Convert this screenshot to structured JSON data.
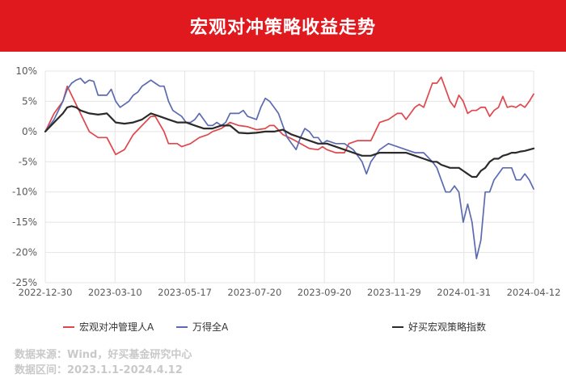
{
  "title": "宏观对冲策略收益走势",
  "chart_data": {
    "type": "line",
    "x_ticks": [
      "2022-12-30",
      "2023-03-10",
      "2023-05-17",
      "2023-07-20",
      "2023-09-20",
      "2023-11-29",
      "2024-01-31",
      "2024-04-12"
    ],
    "y_ticks": [
      "10%",
      "5%",
      "0%",
      "-5%",
      "-10%",
      "-15%",
      "-20%",
      "-25%"
    ],
    "ylim": [
      -25,
      10
    ],
    "grid": true,
    "legend_position": "bottom",
    "series": [
      {
        "name": "宏观对冲管理人A",
        "color": "#e0474c",
        "points": [
          [
            0,
            0
          ],
          [
            2,
            3
          ],
          [
            4,
            5
          ],
          [
            5,
            7.5
          ],
          [
            6,
            6
          ],
          [
            8,
            3
          ],
          [
            10,
            0
          ],
          [
            12,
            -1
          ],
          [
            14,
            -1
          ],
          [
            16,
            -3.8
          ],
          [
            18,
            -3
          ],
          [
            20,
            -0.5
          ],
          [
            22,
            1
          ],
          [
            24,
            2.5
          ],
          [
            25,
            2.5
          ],
          [
            27,
            0
          ],
          [
            28,
            -2
          ],
          [
            30,
            -2
          ],
          [
            31,
            -2.5
          ],
          [
            33,
            -2
          ],
          [
            35,
            -1
          ],
          [
            37,
            -0.5
          ],
          [
            38,
            0
          ],
          [
            40,
            0.5
          ],
          [
            41,
            1
          ],
          [
            42,
            1.5
          ],
          [
            44,
            1
          ],
          [
            46,
            0.8
          ],
          [
            48,
            0.3
          ],
          [
            50,
            0.5
          ],
          [
            51,
            1
          ],
          [
            52,
            1
          ],
          [
            54,
            -0.5
          ],
          [
            56,
            -1.2
          ],
          [
            58,
            -2
          ],
          [
            60,
            -2.8
          ],
          [
            62,
            -3
          ],
          [
            63,
            -2.5
          ],
          [
            64,
            -3
          ],
          [
            66,
            -3.5
          ],
          [
            68,
            -3.5
          ],
          [
            69,
            -2
          ],
          [
            71,
            -1.5
          ],
          [
            73,
            -1.5
          ],
          [
            74,
            -1.5
          ],
          [
            76,
            1.5
          ],
          [
            78,
            2
          ],
          [
            80,
            3
          ],
          [
            81,
            3
          ],
          [
            82,
            2
          ],
          [
            84,
            4
          ],
          [
            85,
            4.5
          ],
          [
            86,
            4
          ],
          [
            88,
            8
          ],
          [
            89,
            8
          ],
          [
            90,
            9
          ],
          [
            92,
            5
          ],
          [
            93,
            4
          ],
          [
            94,
            6
          ],
          [
            95,
            5
          ],
          [
            96,
            3
          ],
          [
            97,
            3.5
          ],
          [
            98,
            3.5
          ],
          [
            99,
            4
          ],
          [
            100,
            4
          ],
          [
            101,
            2.5
          ],
          [
            102,
            3.5
          ],
          [
            103,
            4
          ],
          [
            104,
            5.8
          ],
          [
            105,
            4
          ],
          [
            106,
            4.2
          ],
          [
            107,
            4
          ],
          [
            108,
            4.5
          ],
          [
            109,
            4
          ],
          [
            110,
            5
          ],
          [
            111,
            6.2
          ]
        ]
      },
      {
        "name": "万得全A",
        "color": "#5c6bb0",
        "points": [
          [
            0,
            0
          ],
          [
            2,
            2
          ],
          [
            4,
            5
          ],
          [
            5,
            7
          ],
          [
            6,
            8
          ],
          [
            7,
            8.5
          ],
          [
            8,
            8.8
          ],
          [
            9,
            8
          ],
          [
            10,
            8.5
          ],
          [
            11,
            8.3
          ],
          [
            12,
            6
          ],
          [
            14,
            6
          ],
          [
            15,
            7
          ],
          [
            16,
            5
          ],
          [
            17,
            4
          ],
          [
            18,
            4.5
          ],
          [
            19,
            5
          ],
          [
            20,
            6
          ],
          [
            21,
            6.5
          ],
          [
            22,
            7.5
          ],
          [
            23,
            8
          ],
          [
            24,
            8.5
          ],
          [
            25,
            8
          ],
          [
            26,
            7.5
          ],
          [
            27,
            7.5
          ],
          [
            28,
            5
          ],
          [
            29,
            3.5
          ],
          [
            30,
            3
          ],
          [
            31,
            2.5
          ],
          [
            32,
            1.5
          ],
          [
            33,
            1.5
          ],
          [
            34,
            2
          ],
          [
            35,
            3
          ],
          [
            36,
            2
          ],
          [
            37,
            1
          ],
          [
            38,
            1
          ],
          [
            39,
            1.5
          ],
          [
            40,
            1
          ],
          [
            41,
            1.5
          ],
          [
            42,
            3
          ],
          [
            44,
            3
          ],
          [
            45,
            3.5
          ],
          [
            46,
            2.5
          ],
          [
            48,
            2
          ],
          [
            49,
            4
          ],
          [
            50,
            5.5
          ],
          [
            51,
            5
          ],
          [
            52,
            4
          ],
          [
            53,
            3
          ],
          [
            54,
            1
          ],
          [
            55,
            -1
          ],
          [
            56,
            -2
          ],
          [
            57,
            -3
          ],
          [
            58,
            -1
          ],
          [
            59,
            0.5
          ],
          [
            60,
            0
          ],
          [
            61,
            -1
          ],
          [
            62,
            -1
          ],
          [
            63,
            -2
          ],
          [
            64,
            -1.5
          ],
          [
            66,
            -2
          ],
          [
            68,
            -2
          ],
          [
            70,
            -3
          ],
          [
            72,
            -5
          ],
          [
            73,
            -7
          ],
          [
            74,
            -5
          ],
          [
            75,
            -4
          ],
          [
            76,
            -3
          ],
          [
            78,
            -2
          ],
          [
            80,
            -2.5
          ],
          [
            82,
            -3
          ],
          [
            84,
            -3.5
          ],
          [
            86,
            -3.5
          ],
          [
            88,
            -5
          ],
          [
            89,
            -6
          ],
          [
            90,
            -8
          ],
          [
            91,
            -10
          ],
          [
            92,
            -10
          ],
          [
            93,
            -9
          ],
          [
            94,
            -10
          ],
          [
            95,
            -15
          ],
          [
            96,
            -12
          ],
          [
            97,
            -15
          ],
          [
            98,
            -21
          ],
          [
            99,
            -18
          ],
          [
            100,
            -10
          ],
          [
            101,
            -10
          ],
          [
            102,
            -8
          ],
          [
            103,
            -7
          ],
          [
            104,
            -6
          ],
          [
            105,
            -6
          ],
          [
            106,
            -6
          ],
          [
            107,
            -8
          ],
          [
            108,
            -8
          ],
          [
            109,
            -7
          ],
          [
            110,
            -8
          ],
          [
            111,
            -9.5
          ]
        ]
      },
      {
        "name": "好买宏观策略指数",
        "color": "#2b2b2b",
        "points": [
          [
            0,
            0
          ],
          [
            2,
            1.5
          ],
          [
            4,
            3
          ],
          [
            5,
            4
          ],
          [
            6,
            4.2
          ],
          [
            7,
            4
          ],
          [
            8,
            3.5
          ],
          [
            10,
            3
          ],
          [
            12,
            2.8
          ],
          [
            14,
            3
          ],
          [
            16,
            1.5
          ],
          [
            18,
            1.3
          ],
          [
            20,
            1.5
          ],
          [
            22,
            2
          ],
          [
            24,
            3
          ],
          [
            26,
            2.5
          ],
          [
            28,
            2
          ],
          [
            30,
            1.5
          ],
          [
            32,
            1.5
          ],
          [
            34,
            1
          ],
          [
            36,
            0.5
          ],
          [
            38,
            0.5
          ],
          [
            40,
            1
          ],
          [
            42,
            1
          ],
          [
            44,
            -0.2
          ],
          [
            46,
            -0.3
          ],
          [
            48,
            -0.2
          ],
          [
            50,
            0
          ],
          [
            52,
            0
          ],
          [
            54,
            0.3
          ],
          [
            56,
            -0.5
          ],
          [
            58,
            -1
          ],
          [
            60,
            -1.5
          ],
          [
            62,
            -2
          ],
          [
            64,
            -2
          ],
          [
            66,
            -2.5
          ],
          [
            68,
            -3
          ],
          [
            70,
            -3.5
          ],
          [
            72,
            -4
          ],
          [
            74,
            -4
          ],
          [
            76,
            -3.5
          ],
          [
            78,
            -3.5
          ],
          [
            80,
            -3.5
          ],
          [
            82,
            -3.5
          ],
          [
            84,
            -4
          ],
          [
            86,
            -4.5
          ],
          [
            88,
            -5
          ],
          [
            89,
            -5
          ],
          [
            90,
            -5.5
          ],
          [
            92,
            -6
          ],
          [
            93,
            -6
          ],
          [
            94,
            -6
          ],
          [
            95,
            -6.5
          ],
          [
            96,
            -7
          ],
          [
            97,
            -7.5
          ],
          [
            98,
            -7.5
          ],
          [
            99,
            -6.5
          ],
          [
            100,
            -6
          ],
          [
            101,
            -5
          ],
          [
            102,
            -4.5
          ],
          [
            103,
            -4.5
          ],
          [
            104,
            -4
          ],
          [
            105,
            -3.8
          ],
          [
            106,
            -3.5
          ],
          [
            107,
            -3.5
          ],
          [
            108,
            -3.3
          ],
          [
            109,
            -3.2
          ],
          [
            110,
            -3
          ],
          [
            111,
            -2.8
          ]
        ]
      }
    ]
  },
  "legend": [
    {
      "label": "宏观对冲管理人A",
      "color": "#e0474c"
    },
    {
      "label": "万得全A",
      "color": "#5c6bb0"
    },
    {
      "label": "好买宏观策略指数",
      "color": "#2b2b2b"
    }
  ],
  "source_line": "数据来源：Wind，好买基金研究中心",
  "period_line": "数据区间：2023.1.1-2024.4.12"
}
